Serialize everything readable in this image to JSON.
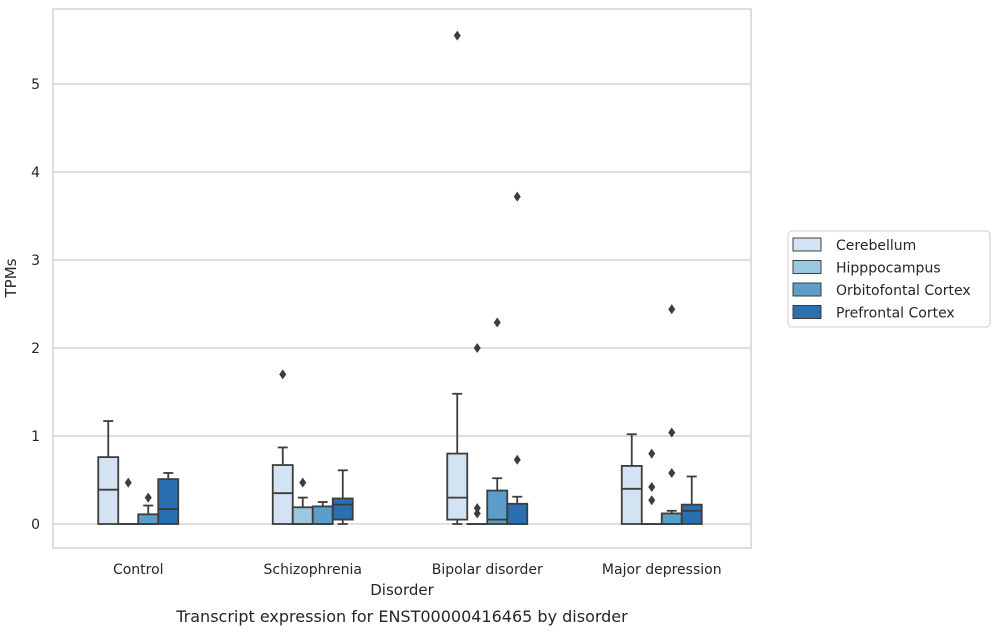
{
  "chart_data": {
    "type": "box",
    "title": "",
    "caption": "Transcript expression for ENST00000416465 by disorder",
    "xlabel": "Disorder",
    "ylabel": "TPMs",
    "ylim": [
      -0.27,
      5.85
    ],
    "yticks": [
      0,
      1,
      2,
      3,
      4,
      5
    ],
    "grid": true,
    "legend_position": "right",
    "categories": [
      "Control",
      "Schizophrenia",
      "Bipolar disorder",
      "Major depression"
    ],
    "series": [
      {
        "name": "Cerebellum",
        "color": "#d3e3f3",
        "boxes": [
          {
            "whisker_low": 0,
            "q1": 0,
            "median": 0.39,
            "q3": 0.76,
            "whisker_high": 1.17,
            "outliers": []
          },
          {
            "whisker_low": 0,
            "q1": 0,
            "median": 0.35,
            "q3": 0.67,
            "whisker_high": 0.87,
            "outliers": [
              1.7
            ]
          },
          {
            "whisker_low": 0,
            "q1": 0.05,
            "median": 0.3,
            "q3": 0.8,
            "whisker_high": 1.48,
            "outliers": [
              5.55
            ]
          },
          {
            "whisker_low": 0,
            "q1": 0,
            "median": 0.4,
            "q3": 0.66,
            "whisker_high": 1.02,
            "outliers": []
          }
        ]
      },
      {
        "name": "Hipppocampus",
        "color": "#9ac8e0",
        "boxes": [
          {
            "whisker_low": 0,
            "q1": 0,
            "median": 0,
            "q3": 0,
            "whisker_high": 0,
            "outliers": [
              0.47
            ]
          },
          {
            "whisker_low": 0,
            "q1": 0,
            "median": 0,
            "q3": 0.19,
            "whisker_high": 0.3,
            "outliers": [
              0.47
            ]
          },
          {
            "whisker_low": 0,
            "q1": 0,
            "median": 0,
            "q3": 0,
            "whisker_high": 0,
            "outliers": [
              0.12,
              0.18,
              2.0
            ]
          },
          {
            "whisker_low": 0,
            "q1": 0,
            "median": 0,
            "q3": 0,
            "whisker_high": 0,
            "outliers": [
              0.27,
              0.42,
              0.8
            ]
          }
        ]
      },
      {
        "name": "Orbitofontal Cortex",
        "color": "#5a9ec9",
        "boxes": [
          {
            "whisker_low": 0,
            "q1": 0,
            "median": 0,
            "q3": 0.11,
            "whisker_high": 0.21,
            "outliers": [
              0.3
            ]
          },
          {
            "whisker_low": 0,
            "q1": 0,
            "median": 0,
            "q3": 0.2,
            "whisker_high": 0.25,
            "outliers": []
          },
          {
            "whisker_low": 0,
            "q1": 0,
            "median": 0.05,
            "q3": 0.38,
            "whisker_high": 0.52,
            "outliers": [
              2.29
            ]
          },
          {
            "whisker_low": 0,
            "q1": 0,
            "median": 0,
            "q3": 0.12,
            "whisker_high": 0.15,
            "outliers": [
              0.58,
              1.04,
              2.44
            ]
          }
        ]
      },
      {
        "name": "Prefrontal Cortex",
        "color": "#2a6fb0",
        "boxes": [
          {
            "whisker_low": 0,
            "q1": 0,
            "median": 0.17,
            "q3": 0.51,
            "whisker_high": 0.58,
            "outliers": []
          },
          {
            "whisker_low": 0,
            "q1": 0.05,
            "median": 0.22,
            "q3": 0.29,
            "whisker_high": 0.61,
            "outliers": []
          },
          {
            "whisker_low": 0,
            "q1": 0,
            "median": 0,
            "q3": 0.23,
            "whisker_high": 0.31,
            "outliers": [
              0.73,
              3.72
            ]
          },
          {
            "whisker_low": 0,
            "q1": 0,
            "median": 0.15,
            "q3": 0.22,
            "whisker_high": 0.54,
            "outliers": []
          }
        ]
      }
    ]
  }
}
